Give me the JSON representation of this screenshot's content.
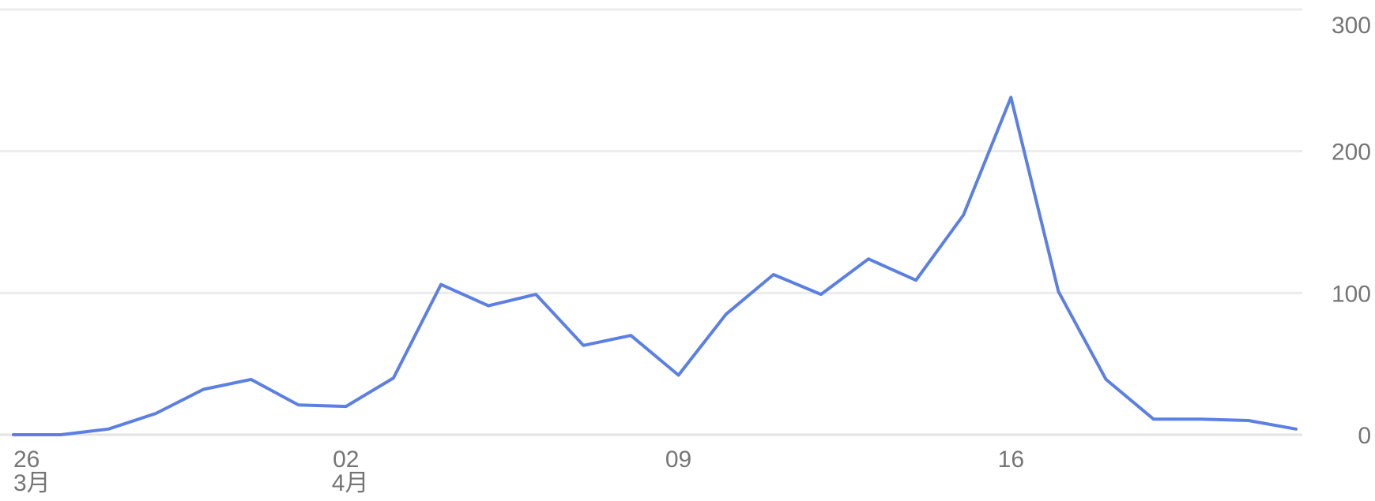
{
  "chart_data": {
    "type": "line",
    "title": "",
    "xlabel": "",
    "ylabel": "",
    "ylim": [
      0,
      300
    ],
    "y_ticks": [
      0,
      100,
      200,
      300
    ],
    "y_axis_position": "right",
    "grid": true,
    "x_ticks": [
      {
        "index": 0,
        "day": "26",
        "month": "3月"
      },
      {
        "index": 7,
        "day": "02",
        "month": "4月"
      },
      {
        "index": 14,
        "day": "09",
        "month": ""
      },
      {
        "index": 21,
        "day": "16",
        "month": ""
      }
    ],
    "x": [
      "3/26",
      "3/27",
      "3/28",
      "3/29",
      "3/30",
      "3/31",
      "4/1",
      "4/2",
      "4/3",
      "4/4",
      "4/5",
      "4/6",
      "4/7",
      "4/8",
      "4/9",
      "4/10",
      "4/11",
      "4/12",
      "4/13",
      "4/14",
      "4/15",
      "4/16",
      "4/17",
      "4/18",
      "4/19",
      "4/20",
      "4/21",
      "4/22"
    ],
    "series": [
      {
        "color": "#5b7fe3",
        "values": [
          0,
          0,
          4,
          15,
          32,
          39,
          21,
          20,
          40,
          106,
          91,
          99,
          63,
          70,
          42,
          85,
          113,
          99,
          124,
          109,
          155,
          238,
          101,
          39,
          11,
          11,
          10,
          4
        ]
      }
    ]
  }
}
